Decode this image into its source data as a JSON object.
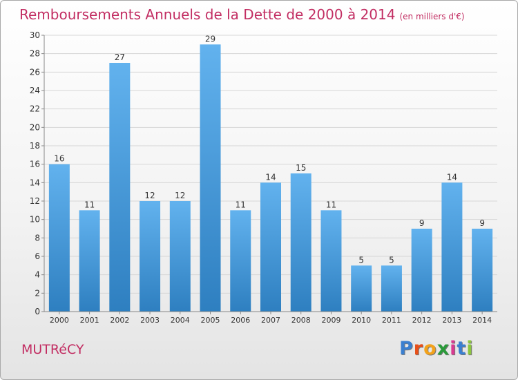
{
  "header": {
    "title": "Remboursements Annuels de la Dette de 2000 à 2014",
    "subtitle": "(en milliers d'€)"
  },
  "footer": {
    "town": "MUTRéCY",
    "logo": "Proxiti",
    "logo_colors": [
      "#3a7fd0",
      "#e8501a",
      "#f3a21b",
      "#2a9a3a",
      "#d93a91",
      "#3a7fd0",
      "#8cc63e"
    ]
  },
  "colors": {
    "title": "#c22d62",
    "bar_top": "#62b2ee",
    "bar_bottom": "#2e7fc0"
  },
  "chart_data": {
    "type": "bar",
    "title": "Remboursements Annuels de la Dette de 2000 à 2014",
    "xlabel": "",
    "ylabel": "",
    "categories": [
      "2000",
      "2001",
      "2002",
      "2003",
      "2004",
      "2005",
      "2006",
      "2007",
      "2008",
      "2009",
      "2010",
      "2011",
      "2012",
      "2013",
      "2014"
    ],
    "values": [
      16,
      11,
      27,
      12,
      12,
      29,
      11,
      14,
      15,
      11,
      5,
      5,
      9,
      14,
      9
    ],
    "ylim": [
      0,
      30
    ],
    "yticks": [
      0,
      2,
      4,
      6,
      8,
      10,
      12,
      14,
      16,
      18,
      20,
      22,
      24,
      26,
      28,
      30
    ],
    "grid": true,
    "legend": "none"
  }
}
